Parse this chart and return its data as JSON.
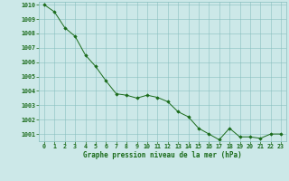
{
  "x": [
    0,
    1,
    2,
    3,
    4,
    5,
    6,
    7,
    8,
    9,
    10,
    11,
    12,
    13,
    14,
    15,
    16,
    17,
    18,
    19,
    20,
    21,
    22,
    23
  ],
  "y": [
    1010.0,
    1009.5,
    1008.4,
    1007.8,
    1006.5,
    1005.7,
    1004.7,
    1003.8,
    1003.7,
    1003.5,
    1003.7,
    1003.55,
    1003.25,
    1002.55,
    1002.2,
    1001.4,
    1001.0,
    1000.6,
    1001.4,
    1000.8,
    1000.8,
    1000.7,
    1001.0,
    1001.0
  ],
  "ylim": [
    1000.5,
    1010.2
  ],
  "xlim": [
    -0.5,
    23.5
  ],
  "yticks": [
    1001,
    1002,
    1003,
    1004,
    1005,
    1006,
    1007,
    1008,
    1009,
    1010
  ],
  "xticks": [
    0,
    1,
    2,
    3,
    4,
    5,
    6,
    7,
    8,
    9,
    10,
    11,
    12,
    13,
    14,
    15,
    16,
    17,
    18,
    19,
    20,
    21,
    22,
    23
  ],
  "line_color": "#1a6b1a",
  "marker_color": "#1a6b1a",
  "bg_color": "#cce8e8",
  "grid_color": "#88bfbf",
  "xlabel": "Graphe pression niveau de la mer (hPa)",
  "xlabel_color": "#1a6b1a",
  "tick_color": "#1a6b1a",
  "axis_label_fontsize": 5.5,
  "tick_fontsize": 4.8
}
